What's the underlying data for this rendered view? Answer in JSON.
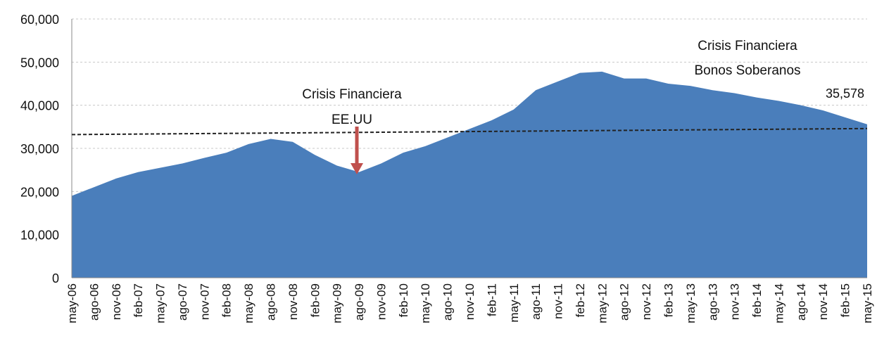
{
  "chart_data": {
    "type": "area",
    "categories": [
      "may-06",
      "ago-06",
      "nov-06",
      "feb-07",
      "may-07",
      "ago-07",
      "nov-07",
      "feb-08",
      "may-08",
      "ago-08",
      "nov-08",
      "feb-09",
      "may-09",
      "ago-09",
      "nov-09",
      "feb-10",
      "may-10",
      "ago-10",
      "nov-10",
      "feb-11",
      "may-11",
      "ago-11",
      "nov-11",
      "feb-12",
      "may-12",
      "ago-12",
      "nov-12",
      "feb-13",
      "may-13",
      "ago-13",
      "nov-13",
      "feb-14",
      "may-14",
      "ago-14",
      "nov-14",
      "feb-15",
      "may-15"
    ],
    "values": [
      19000,
      21000,
      23000,
      24500,
      25500,
      26500,
      27800,
      29000,
      31000,
      32200,
      31500,
      28500,
      26000,
      24500,
      26500,
      29000,
      30500,
      32500,
      34500,
      36500,
      39000,
      43500,
      45500,
      47500,
      47800,
      46200,
      46200,
      45000,
      44500,
      43500,
      42800,
      41800,
      41000,
      40000,
      38800,
      37200,
      35578
    ],
    "value_labels": [
      null,
      null,
      null,
      null,
      null,
      null,
      null,
      null,
      null,
      null,
      null,
      null,
      null,
      null,
      null,
      null,
      null,
      null,
      null,
      null,
      null,
      null,
      null,
      null,
      null,
      null,
      null,
      null,
      null,
      null,
      null,
      null,
      null,
      null,
      null,
      null,
      "35,578"
    ],
    "color": "#4a7ebb",
    "ylim": [
      0,
      60000
    ],
    "yticks": [
      0,
      {
        "value": 10000,
        "label": "10,000"
      },
      {
        "value": 20000,
        "label": "20,000"
      },
      {
        "value": 30000,
        "label": "30,000"
      },
      {
        "value": 40000,
        "label": "40,000"
      },
      {
        "value": 50000,
        "label": "50,000"
      },
      {
        "value": 60000,
        "label": "60,000"
      }
    ],
    "grid": true,
    "reference_line": {
      "start": 33200,
      "end": 34600
    },
    "annotations": [
      [
        "Crisis Financiera",
        "EE.UU"
      ],
      [
        "Crisis Financiera",
        "Bonos Soberanos"
      ]
    ]
  }
}
